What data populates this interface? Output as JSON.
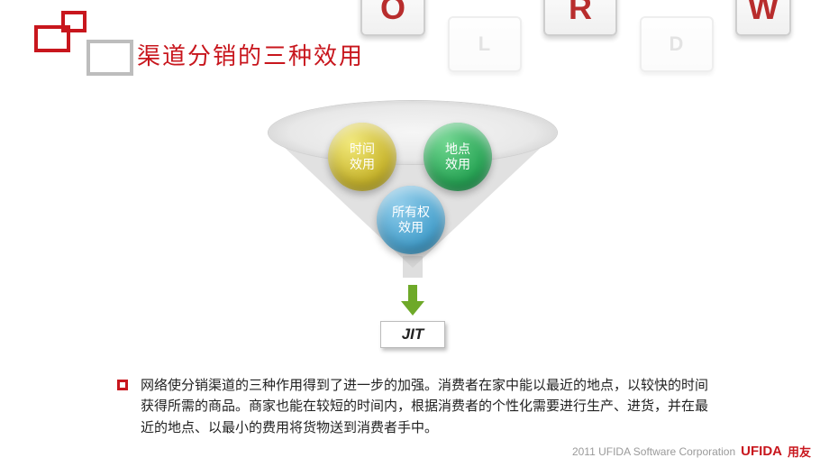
{
  "title": "渠道分销的三种效用",
  "keys": {
    "o": "O",
    "r": "R",
    "w": "W",
    "l": "L",
    "d": "D"
  },
  "funnel": {
    "type": "infographic",
    "circles": {
      "time": {
        "line1": "时间",
        "line2": "效用",
        "bg": "radial-gradient(circle at 35% 30%,#f2e97a,#c9b62e 60%,#a2921a)"
      },
      "place": {
        "line1": "地点",
        "line2": "效用",
        "bg": "radial-gradient(circle at 35% 30%,#6fd68f,#2aa657 60%,#0c7a3c)"
      },
      "own": {
        "line1": "所有权",
        "line2": "效用",
        "bg": "radial-gradient(circle at 35% 30%,#8fccea,#4aa3cf 60%,#1b6f98)"
      }
    },
    "arrow_color": "#6ea929",
    "output_label": "JIT"
  },
  "body_text": "网络使分销渠道的三种作用得到了进一步的加强。消费者在家中能以最近的地点，以较快的时间获得所需的商品。商家也能在较短的时间内，根据消费者的个性化需要进行生产、进货，并在最近的地点、以最小的费用将货物送到消费者手中。",
  "footer": {
    "copyright": "2011 UFIDA Software Corporation",
    "brand_en": "UFIDA",
    "brand_cn": "用友"
  },
  "colors": {
    "accent": "#c8161d",
    "grey_border": "#bdbdbd",
    "text": "#222222"
  }
}
